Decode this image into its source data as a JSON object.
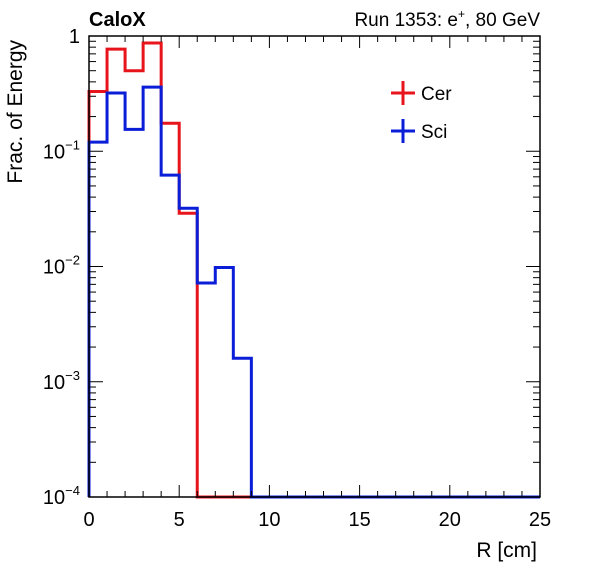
{
  "header": {
    "experiment_label": "CaloX",
    "run_prefix": "Run 1353: e",
    "run_superscript": "+",
    "run_suffix": ", 80 GeV"
  },
  "chart_data": {
    "type": "line",
    "step": true,
    "xlabel": "R [cm]",
    "ylabel": "Frac. of Energy",
    "xlim": [
      0,
      25
    ],
    "ylim": [
      0.0001,
      1
    ],
    "log_y": true,
    "x_ticks": [
      0,
      5,
      10,
      15,
      20,
      25
    ],
    "x_tick_labels": [
      "0",
      "5",
      "10",
      "15",
      "20",
      "25"
    ],
    "y_ticks": [
      1,
      0.1,
      0.01,
      0.001,
      0.0001
    ],
    "y_tick_labels": [
      {
        "base": "1",
        "exp": ""
      },
      {
        "base": "10",
        "exp": "−1"
      },
      {
        "base": "10",
        "exp": "−2"
      },
      {
        "base": "10",
        "exp": "−3"
      },
      {
        "base": "10",
        "exp": "−4"
      }
    ],
    "bin_edges": [
      0,
      1,
      2,
      3,
      4,
      5,
      6,
      7,
      8,
      9,
      10,
      11,
      12,
      13,
      14,
      15,
      16,
      17,
      18,
      19,
      20,
      21,
      22,
      23,
      24,
      25
    ],
    "legend_position": "top-right",
    "series": [
      {
        "name": "Cer",
        "color": "#e8141c",
        "values": [
          0.33,
          0.77,
          0.5,
          0.87,
          0.175,
          0.029,
          0,
          0,
          0,
          0,
          0,
          0,
          0,
          0,
          0,
          0,
          0,
          0,
          0,
          0,
          0,
          0,
          0,
          0,
          0
        ]
      },
      {
        "name": "Sci",
        "color": "#0a1ed8",
        "values": [
          0.12,
          0.32,
          0.155,
          0.36,
          0.062,
          0.032,
          0.0072,
          0.0098,
          0.0016,
          0,
          0,
          0,
          0,
          0,
          0,
          0,
          0,
          0,
          0,
          0,
          0,
          0,
          0,
          0,
          0
        ]
      }
    ]
  }
}
